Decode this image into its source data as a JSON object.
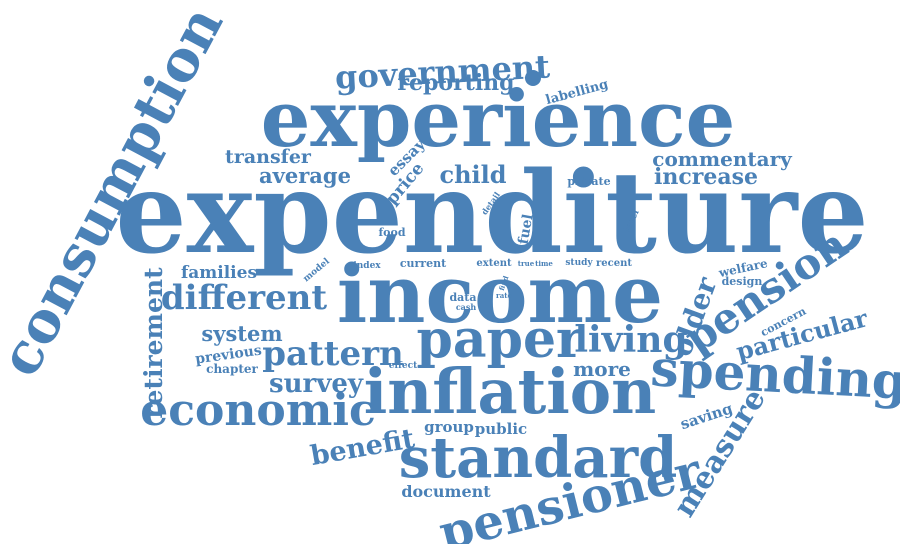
{
  "color": "#4a81b7",
  "words": [
    {
      "text": "expenditure",
      "weight": 100
    },
    {
      "text": "experience",
      "weight": 78
    },
    {
      "text": "income",
      "weight": 75
    },
    {
      "text": "consumption",
      "weight": 57
    },
    {
      "text": "inflation",
      "weight": 57
    },
    {
      "text": "paper",
      "weight": 55
    },
    {
      "text": "standard",
      "weight": 55
    },
    {
      "text": "spending",
      "weight": 50
    },
    {
      "text": "pensioner",
      "weight": 50
    },
    {
      "text": "economic",
      "weight": 46
    },
    {
      "text": "pension",
      "weight": 41
    },
    {
      "text": "different",
      "weight": 35
    },
    {
      "text": "government",
      "weight": 34
    },
    {
      "text": "pattern",
      "weight": 33
    },
    {
      "text": "living",
      "weight": 33
    },
    {
      "text": "measure",
      "weight": 30
    },
    {
      "text": "older",
      "weight": 30
    },
    {
      "text": "benefit",
      "weight": 29
    },
    {
      "text": "retirement",
      "weight": 27
    },
    {
      "text": "survey",
      "weight": 26
    },
    {
      "text": "particular",
      "weight": 25
    },
    {
      "text": "child",
      "weight": 23
    },
    {
      "text": "reporting",
      "weight": 23
    },
    {
      "text": "average",
      "weight": 22
    },
    {
      "text": "increase",
      "weight": 22
    },
    {
      "text": "system",
      "weight": 21
    },
    {
      "text": "commentary",
      "weight": 20
    },
    {
      "text": "transfer",
      "weight": 20
    },
    {
      "text": "more",
      "weight": 19
    },
    {
      "text": "families",
      "weight": 18
    },
    {
      "text": "document",
      "weight": 16
    },
    {
      "text": "price",
      "weight": 16
    },
    {
      "text": "essay",
      "weight": 15
    },
    {
      "text": "public",
      "weight": 15
    },
    {
      "text": "group",
      "weight": 15
    },
    {
      "text": "saving",
      "weight": 15
    },
    {
      "text": "previous",
      "weight": 14
    },
    {
      "text": "fuel",
      "weight": 14
    },
    {
      "text": "labelling",
      "weight": 13
    },
    {
      "text": "private",
      "weight": 12
    },
    {
      "text": "chapter",
      "weight": 12
    },
    {
      "text": "welfare",
      "weight": 12
    },
    {
      "text": "design",
      "weight": 12
    },
    {
      "text": "concern",
      "weight": 12
    },
    {
      "text": "food",
      "weight": 11
    },
    {
      "text": "current",
      "weight": 11
    },
    {
      "text": "extent",
      "weight": 11
    },
    {
      "text": "recent",
      "weight": 11
    },
    {
      "text": "data",
      "weight": 11
    },
    {
      "text": "effect",
      "weight": 10
    },
    {
      "text": "index",
      "weight": 10
    },
    {
      "text": "level",
      "weight": 10
    },
    {
      "text": "study",
      "weight": 10
    },
    {
      "text": "model",
      "weight": 10
    },
    {
      "text": "cash",
      "weight": 9
    },
    {
      "text": "detail",
      "weight": 9
    },
    {
      "text": "true",
      "weight": 8
    },
    {
      "text": "time",
      "weight": 8
    },
    {
      "text": "find",
      "weight": 8
    },
    {
      "text": "rate",
      "weight": 8
    }
  ]
}
